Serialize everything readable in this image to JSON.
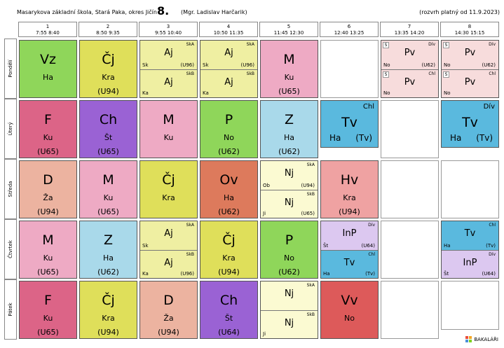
{
  "header": {
    "school": "Masarykova základní škola, Stará Paka, okres Jičín",
    "class": "8.",
    "teacher": "(Mgr. Ladislav Harčarik)",
    "valid": "(rozvrh platný od 11.9.2023)"
  },
  "periods": [
    {
      "num": "1",
      "time": "7:55  8:40"
    },
    {
      "num": "2",
      "time": "8:50  9:35"
    },
    {
      "num": "3",
      "time": "9:55 10:40"
    },
    {
      "num": "4",
      "time": "10:50 11:35"
    },
    {
      "num": "5",
      "time": "11:45 12:30"
    },
    {
      "num": "6",
      "time": "12:40 13:25"
    },
    {
      "num": "7",
      "time": "13:35 14:20"
    },
    {
      "num": "8",
      "time": "14:30 15:15"
    }
  ],
  "days": [
    "Pondělí",
    "Úterý",
    "Středa",
    "Čtvrtek",
    "Pátek"
  ],
  "mon": {
    "p1": {
      "subj": "Vz",
      "tch": "Ha"
    },
    "p2": {
      "subj": "Čj",
      "tch": "Kra",
      "room": "(U94)"
    },
    "p3": {
      "a": {
        "grp": "SkA",
        "subj": "Aj",
        "tch": "Sk",
        "room": "(U96)"
      },
      "b": {
        "grp": "SkB",
        "subj": "Aj",
        "tch": "Ka"
      }
    },
    "p4": {
      "a": {
        "grp": "SkA",
        "subj": "Aj",
        "tch": "Sk",
        "room": "(U96)"
      },
      "b": {
        "grp": "SkB",
        "subj": "Aj",
        "tch": "Ka"
      }
    },
    "p5": {
      "subj": "M",
      "tch": "Ku",
      "room": "(U65)"
    },
    "p7": {
      "a": {
        "chip": "S",
        "grp": "Dív",
        "subj": "Pv",
        "tch": "No",
        "room": "(U62)"
      },
      "b": {
        "chip": "S",
        "grp": "Chl",
        "subj": "Pv",
        "tch": "No"
      }
    },
    "p8": {
      "a": {
        "chip": "S",
        "grp": "Dív",
        "subj": "Pv",
        "tch": "No",
        "room": "(U62)"
      },
      "b": {
        "chip": "S",
        "grp": "Chl",
        "subj": "Pv",
        "tch": "No"
      }
    }
  },
  "tue": {
    "p1": {
      "subj": "F",
      "tch": "Ku",
      "room": "(U65)"
    },
    "p2": {
      "subj": "Ch",
      "tch": "Št",
      "room": "(U65)"
    },
    "p3": {
      "subj": "M",
      "tch": "Ku"
    },
    "p4": {
      "subj": "P",
      "tch": "No",
      "room": "(U62)"
    },
    "p5": {
      "subj": "Z",
      "tch": "Ha",
      "room": "(U62)"
    },
    "p6": {
      "grp": "Chl",
      "subj": "Tv",
      "tch": "Ha",
      "room": "(Tv)"
    },
    "p8": {
      "grp": "Dív",
      "subj": "Tv",
      "tch": "Ha",
      "room": "(Tv)"
    }
  },
  "wed": {
    "p1": {
      "subj": "D",
      "tch": "Ža",
      "room": "(U94)"
    },
    "p2": {
      "subj": "M",
      "tch": "Ku",
      "room": "(U65)"
    },
    "p3": {
      "subj": "Čj",
      "tch": "Kra"
    },
    "p4": {
      "subj": "Ov",
      "tch": "Ha",
      "room": "(U62)"
    },
    "p5": {
      "a": {
        "grp": "SkA",
        "subj": "Nj",
        "tch": "Ob",
        "room": "(U94)"
      },
      "b": {
        "grp": "SkB",
        "subj": "Nj",
        "tch": "Ji",
        "room": "(U65)"
      }
    },
    "p6": {
      "subj": "Hv",
      "tch": "Kra",
      "room": "(U94)"
    }
  },
  "thu": {
    "p1": {
      "subj": "M",
      "tch": "Ku",
      "room": "(U65)"
    },
    "p2": {
      "subj": "Z",
      "tch": "Ha",
      "room": "(U62)"
    },
    "p3": {
      "a": {
        "grp": "SkA",
        "subj": "Aj",
        "tch": "Sk"
      },
      "b": {
        "grp": "SkB",
        "subj": "Aj",
        "tch": "Ka",
        "room": "(U96)"
      }
    },
    "p4": {
      "subj": "Čj",
      "tch": "Kra",
      "room": "(U94)"
    },
    "p5": {
      "subj": "P",
      "tch": "No",
      "room": "(U62)"
    },
    "p6": {
      "a": {
        "grp": "Dív",
        "subj": "InP",
        "tch": "Št",
        "room": "(U64)"
      },
      "b": {
        "grp": "Chl",
        "subj": "Tv",
        "tch": "Ha",
        "room": "(Tv)"
      }
    },
    "p8": {
      "a": {
        "grp": "Chl",
        "subj": "Tv",
        "tch": "Ha",
        "room": "(Tv)"
      },
      "b": {
        "grp": "Dív",
        "subj": "InP",
        "tch": "Št",
        "room": "(U64)"
      }
    }
  },
  "fri": {
    "p1": {
      "subj": "F",
      "tch": "Ku",
      "room": "(U65)"
    },
    "p2": {
      "subj": "Čj",
      "tch": "Kra",
      "room": "(U94)"
    },
    "p3": {
      "subj": "D",
      "tch": "Ža",
      "room": "(U94)"
    },
    "p4": {
      "subj": "Ch",
      "tch": "Št",
      "room": "(U64)"
    },
    "p5": {
      "a": {
        "grp": "SkA",
        "subj": "Nj"
      },
      "b": {
        "grp": "SkB",
        "subj": "Nj",
        "tch": "Ji"
      }
    },
    "p6": {
      "subj": "Vv",
      "tch": "No"
    }
  },
  "footer": {
    "brand": "BAKALÁŘI"
  },
  "colors": {
    "Vz": "#8fd65a",
    "Cj": "#dfdf5a",
    "Aj": "#efefa2",
    "M": "#eeaac4",
    "Pv": "#f7dcdc",
    "F": "#dc6487",
    "Ch": "#9a62d4",
    "P": "#8fd65a",
    "Z": "#a9d9ea",
    "Tv": "#5ab9de",
    "D": "#ecb3a0",
    "Ov": "#dd7a5c",
    "Nj": "#fbfad2",
    "Hv": "#efa2a2",
    "InP": "#dcc8f0",
    "Vv": "#dd5a5a"
  }
}
